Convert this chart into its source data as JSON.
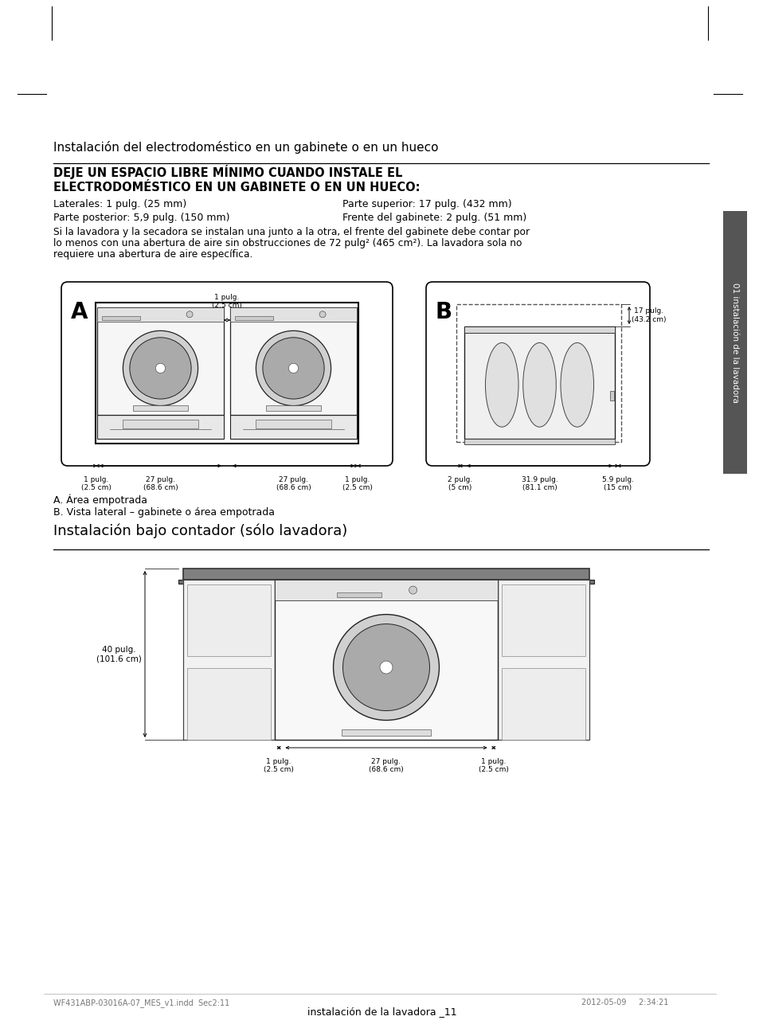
{
  "page_bg": "#ffffff",
  "section1_title": "Instalación del electrodoméstico en un gabinete o en un hueco",
  "section2_title": "Instalación bajo contador (sólo lavadora)",
  "bold_title1": "DEJE UN ESPACIO LIBRE MÍNIMO CUANDO INSTALE EL",
  "bold_title2": "ELECTRODOMÉSTICO EN UN GABINETE O EN UN HUECO:",
  "spec1_left": "Laterales: 1 pulg. (25 mm)",
  "spec2_left": "Parte posterior: 5,9 pulg. (150 mm)",
  "spec1_right": "Parte superior: 17 pulg. (432 mm)",
  "spec2_right": "Frente del gabinete: 2 pulg. (51 mm)",
  "note_line1": "Si la lavadora y la secadora se instalan una junto a la otra, el frente del gabinete debe contar por",
  "note_line2": "lo menos con una abertura de aire sin obstrucciones de 72 pulg² (465 cm²). La lavadora sola no",
  "note_line3": "requiere una abertura de aire específica.",
  "label_A": "A",
  "label_B": "B",
  "caption_A": "A. Área empotrada",
  "caption_B": "B. Vista lateral – gabinete o área empotrada",
  "dim_1pulg_center": "1 pulg.\n(2.5 cm)",
  "dim_27pulg": "27 pulg.\n(68.6 cm)",
  "dim_1pulg": "1 pulg.\n(2.5 cm)",
  "dim_17pulg": "17 pulg.\n(43.2 cm)",
  "dim_2pulg": "2 pulg.\n(5 cm)",
  "dim_319pulg": "31.9 pulg.\n(81.1 cm)",
  "dim_59pulg": "5.9 pulg.\n(15 cm)",
  "dim_40pulg": "40 pulg.\n(101.6 cm)",
  "sidebar_text": "01 instalación de la lavadora",
  "footer_text": "instalación de la lavadora _11",
  "footer_file": "WF431ABP-03016A-07_MES_v1.indd  Sec2:11",
  "footer_date": "2012-05-09     2:34:21"
}
